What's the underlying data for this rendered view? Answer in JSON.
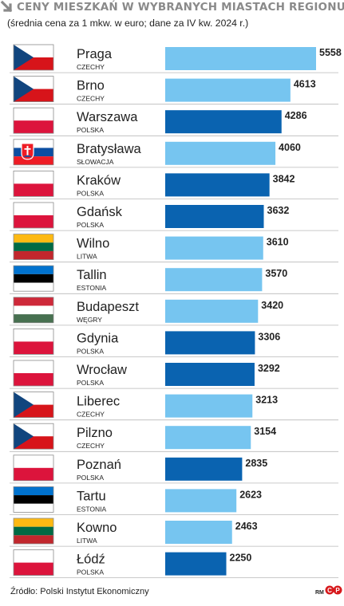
{
  "header": {
    "title": "CENY MIESZKAŃ W WYBRANYCH MIASTACH REGIONU",
    "subtitle": "(średnia cena za 1 mkw. w euro; dane za IV kw. 2024 r.)"
  },
  "colors": {
    "bar_light": "#76c5f0",
    "bar_dark": "#0a63b0",
    "title_grey": "#8a8a8a",
    "row_line": "#b8b8b8"
  },
  "chart_data": {
    "type": "bar",
    "orientation": "horizontal",
    "title": "CENY MIESZKAŃ W WYBRANYCH MIASTACH REGIONU",
    "subtitle": "(średnia cena za 1 mkw. w euro; dane za IV kw. 2024 r.)",
    "xlim": [
      0,
      5558
    ],
    "grid": false,
    "note": "",
    "categories": [
      "Praga",
      "Brno",
      "Warszawa",
      "Bratysława",
      "Kraków",
      "Gdańsk",
      "Wilno",
      "Tallin",
      "Budapeszt",
      "Gdynia",
      "Wrocław",
      "Liberec",
      "Pilzno",
      "Poznań",
      "Tartu",
      "Kowno",
      "Łódź"
    ],
    "countries": [
      "CZECHY",
      "CZECHY",
      "POLSKA",
      "SŁOWACJA",
      "POLSKA",
      "POLSKA",
      "LITWA",
      "ESTONIA",
      "WĘGRY",
      "POLSKA",
      "POLSKA",
      "CZECHY",
      "CZECHY",
      "POLSKA",
      "ESTONIA",
      "LITWA",
      "POLSKA"
    ],
    "flags": [
      "czech",
      "czech",
      "poland",
      "slovakia",
      "poland",
      "poland",
      "lithuania",
      "estonia",
      "hungary",
      "poland",
      "poland",
      "czech",
      "czech",
      "poland",
      "estonia",
      "lithuania",
      "poland"
    ],
    "values": [
      5558,
      4613,
      4286,
      4060,
      3842,
      3632,
      3610,
      3570,
      3420,
      3306,
      3292,
      3213,
      3154,
      2835,
      2623,
      2463,
      2250
    ],
    "value_labels": [
      "5558",
      "4613",
      "4286",
      "4060",
      "3842",
      "3632",
      "3610",
      "3570",
      "3420",
      "3306",
      "3292",
      "3213",
      "3154",
      "2835",
      "2623",
      "2463",
      "2250"
    ],
    "highlight": [
      "light",
      "light",
      "dark",
      "light",
      "dark",
      "dark",
      "light",
      "light",
      "light",
      "dark",
      "dark",
      "light",
      "light",
      "dark",
      "light",
      "light",
      "dark"
    ]
  },
  "footer": {
    "source": "Źródło: Polski Instytut Ekonomiczny",
    "author": "RM",
    "logo": "cp-logo"
  }
}
